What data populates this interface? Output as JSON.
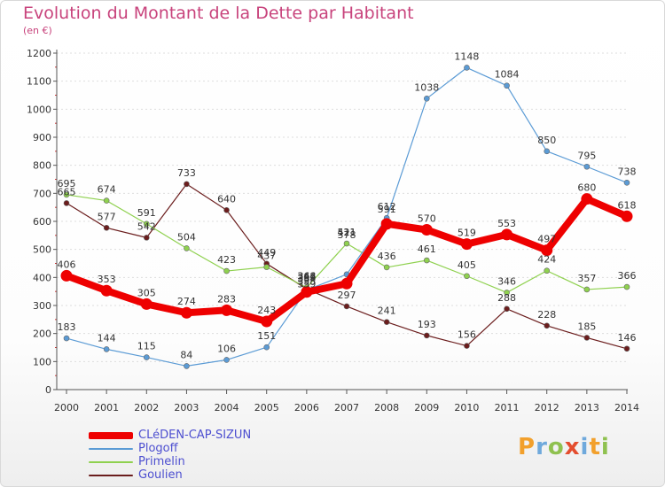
{
  "page": {
    "title": "Evolution du Montant de la Dette par Habitant",
    "subtitle": "(en €)",
    "logo_text": "Proxiti"
  },
  "colors": {
    "title": "#c8437c",
    "legend_text": "#4d4fd0",
    "axis_text": "#333333",
    "grid": "#dddddd"
  },
  "chart_data": {
    "type": "line",
    "title": "Evolution du Montant de la Dette par Habitant",
    "subtitle": "(en €)",
    "xlabel": "",
    "ylabel": "",
    "x": [
      "2000",
      "2001",
      "2002",
      "2003",
      "2004",
      "2005",
      "2006",
      "2007",
      "2008",
      "2009",
      "2010",
      "2011",
      "2012",
      "2013",
      "2014"
    ],
    "ylim": [
      0,
      1200
    ],
    "yticks": [
      0,
      100,
      200,
      300,
      400,
      500,
      600,
      700,
      800,
      900,
      1000,
      1100,
      1200
    ],
    "grid": "horizontal dashed",
    "legend_position": "bottom-left",
    "series": [
      {
        "name": "CLéDEN-CAP-SIZUN",
        "color": "#ee0000",
        "values": [
          406,
          353,
          305,
          274,
          283,
          243,
          348,
          378,
          591,
          570,
          519,
          553,
          497,
          680,
          618
        ],
        "labels": [
          "406",
          "353",
          "305",
          "274",
          "283",
          "243",
          "",
          "",
          "",
          "570",
          "519",
          "553",
          "497",
          "680",
          "618"
        ]
      },
      {
        "name": "Plogoff",
        "color": "#5b9bd5",
        "values": [
          183,
          144,
          115,
          84,
          106,
          151,
          355,
          411,
          612,
          1038,
          1148,
          1084,
          850,
          795,
          738
        ],
        "labels": [
          "183",
          "144",
          "115",
          "84",
          "106",
          "151",
          "",
          "",
          "",
          "1038",
          "1148",
          "1084",
          "850",
          "795",
          "738"
        ]
      },
      {
        "name": "Primelin",
        "color": "#8fd14f",
        "values": [
          695,
          674,
          591,
          504,
          423,
          437,
          364,
          521,
          436,
          461,
          405,
          346,
          424,
          357,
          366
        ],
        "labels": [
          "695",
          "674",
          "591",
          "504",
          "423",
          "437",
          "364",
          "521",
          "436",
          "461",
          "405",
          "346",
          "424",
          "357",
          "366"
        ]
      },
      {
        "name": "Goulien",
        "color": "#6b1d1d",
        "values": [
          665,
          577,
          542,
          733,
          640,
          449,
          359,
          297,
          241,
          193,
          156,
          288,
          228,
          185,
          146
        ],
        "labels": [
          "665",
          "577",
          "542",
          "733",
          "640",
          "449",
          "359",
          "297",
          "241",
          "193",
          "156",
          "288",
          "228",
          "185",
          "146"
        ]
      }
    ],
    "cluster_labels": [
      {
        "x": "2006",
        "lines": [
          "348",
          "364",
          "355",
          "359"
        ]
      },
      {
        "x": "2007",
        "lines": [
          "411",
          "378"
        ]
      },
      {
        "x": "2008",
        "lines": [
          "612",
          "591"
        ]
      }
    ]
  }
}
